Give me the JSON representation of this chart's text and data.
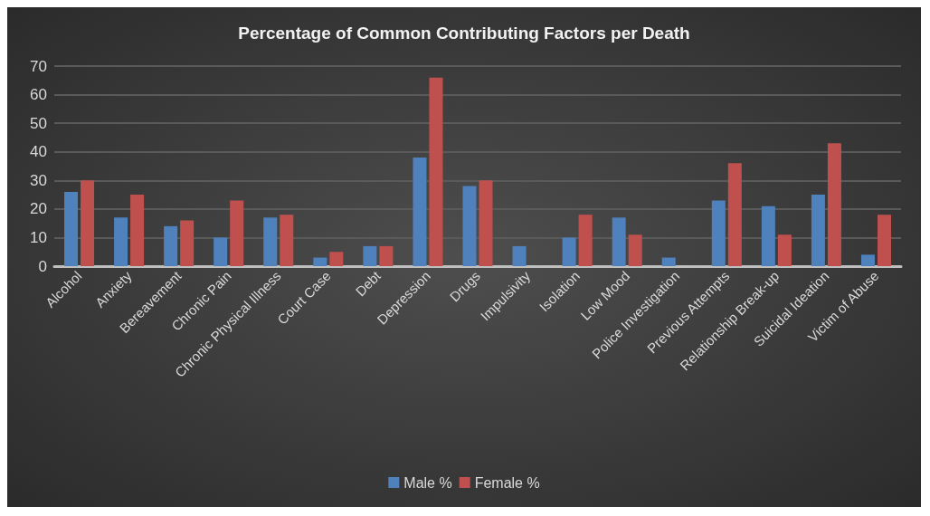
{
  "chart_data": {
    "type": "bar",
    "title": "Percentage of Common Contributing Factors per Death",
    "categories": [
      "Alcohol",
      "Anxiety",
      "Bereavement",
      "Chronic Pain",
      "Chronic Physical Illness",
      "Court Case",
      "Debt",
      "Depression",
      "Drugs",
      "Impulsivity",
      "Isolation",
      "Low Mood",
      "Police Investigation",
      "Previous Attempts",
      "Relationship Break-up",
      "Suicidal Ideation",
      "Victim of Abuse"
    ],
    "series": [
      {
        "name": "Male %",
        "color": "#4f81bd",
        "values": [
          26,
          17,
          14,
          10,
          17,
          3,
          7,
          38,
          28,
          7,
          10,
          17,
          3,
          23,
          21,
          25,
          4
        ]
      },
      {
        "name": "Female %",
        "color": "#c0504d",
        "values": [
          30,
          25,
          16,
          23,
          18,
          5,
          7,
          66,
          30,
          0,
          18,
          11,
          0,
          36,
          11,
          43,
          18
        ]
      }
    ],
    "ylim": [
      0,
      70
    ],
    "yticks": [
      0,
      10,
      20,
      30,
      40,
      50,
      60,
      70
    ],
    "grid": "y",
    "legend": "bottom"
  }
}
